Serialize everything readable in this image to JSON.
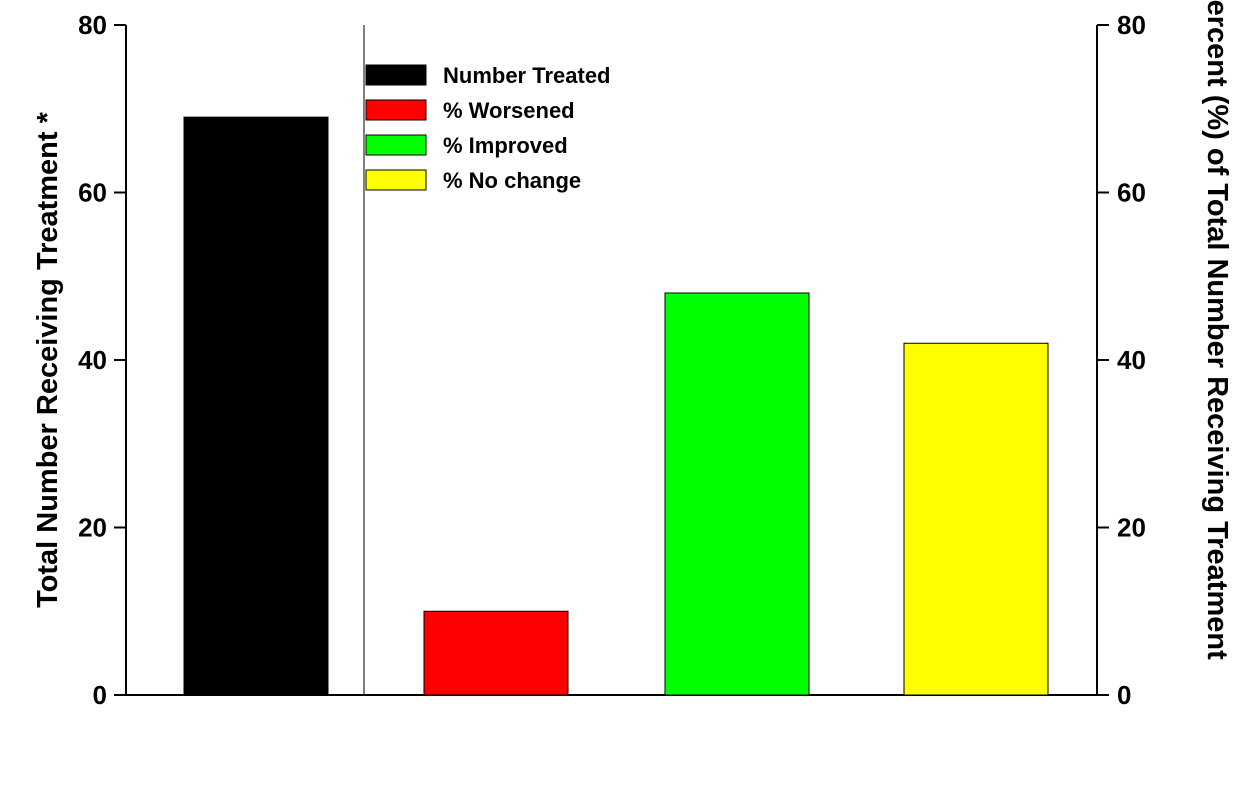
{
  "chart_data": {
    "type": "bar",
    "left_axis": {
      "label": "Total Number Receiving Treatment *",
      "ylim": [
        0,
        80
      ],
      "ticks": [
        "0",
        "20",
        "40",
        "60",
        "80"
      ]
    },
    "right_axis": {
      "label": "Percent (%) of Total Number Receiving Treatment",
      "ylim": [
        0,
        80
      ],
      "ticks": [
        "0",
        "20",
        "40",
        "60",
        "80"
      ]
    },
    "grid": false,
    "legend_position": "top-left",
    "bars": [
      {
        "name": "Number Treated",
        "value": 69,
        "axis": "left",
        "color": "#000000"
      },
      {
        "name": "% Worsened",
        "value": 10,
        "axis": "right",
        "color": "#ff0000"
      },
      {
        "name": "% Improved",
        "value": 48,
        "axis": "right",
        "color": "#00ff00"
      },
      {
        "name": "% No change",
        "value": 42,
        "axis": "right",
        "color": "#ffff00"
      }
    ],
    "legend": [
      "Number Treated",
      "% Worsened",
      "% Improved",
      "% No change"
    ]
  }
}
